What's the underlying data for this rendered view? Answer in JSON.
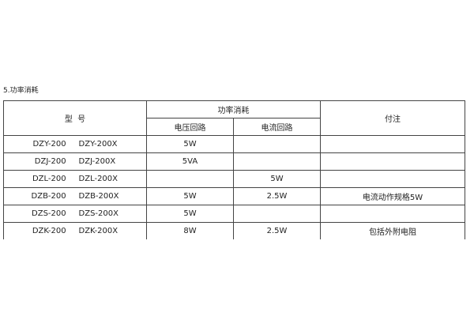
{
  "section_title": "5.功率消耗",
  "table": {
    "headers": {
      "model": "型  号",
      "power": "功率消耗",
      "voltage_circuit": "电压回路",
      "current_circuit": "电流回路",
      "note": "付注"
    },
    "rows": [
      {
        "model": "DZY-200     DZY-200X",
        "voltage": "5W",
        "current": "",
        "note": ""
      },
      {
        "model": "DZJ-200     DZJ-200X",
        "voltage": "5VA",
        "current": "",
        "note": ""
      },
      {
        "model": "DZL-200     DZL-200X",
        "voltage": "",
        "current": "5W",
        "note": ""
      },
      {
        "model": "DZB-200     DZB-200X",
        "voltage": "5W",
        "current": "2.5W",
        "note": "电流动作规格5W"
      },
      {
        "model": "DZS-200     DZS-200X",
        "voltage": "5W",
        "current": "",
        "note": ""
      },
      {
        "model": "DZK-200     DZK-200X",
        "voltage": "8W",
        "current": "2.5W",
        "note": "包括外附电阻"
      }
    ]
  }
}
